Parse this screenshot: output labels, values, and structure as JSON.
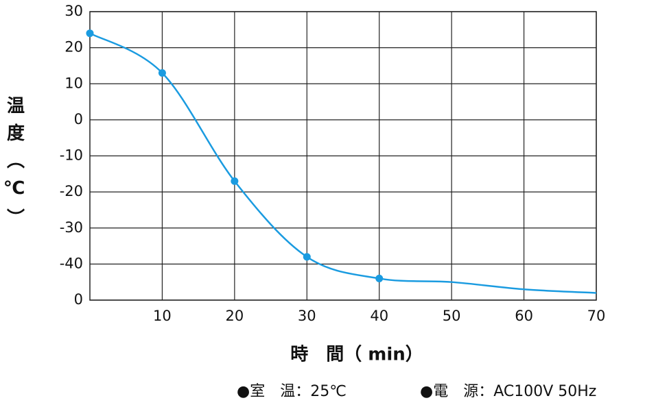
{
  "chart_data": {
    "type": "line",
    "x_label": "時　間（ min）",
    "y_label": "温度（℃）",
    "x": [
      0,
      10,
      20,
      30,
      40,
      50,
      60,
      70
    ],
    "series": [
      {
        "color": "#1a9be0",
        "values": [
          24,
          13,
          -17,
          -38,
          -44,
          -45,
          -47,
          -48
        ],
        "markers": [
          true,
          true,
          true,
          true,
          true,
          false,
          false,
          false
        ]
      }
    ],
    "xlim": [
      0,
      70
    ],
    "xticks": [
      10,
      20,
      30,
      40,
      50,
      60,
      70
    ],
    "ylim": [
      -50,
      30
    ],
    "yticks": [
      {
        "value": -50,
        "label": "0"
      },
      -40,
      -30,
      -20,
      -10,
      0,
      10,
      20,
      30
    ],
    "grid": true,
    "notes": [
      "●室　温：25℃",
      "●電　源：AC100V 50Hz"
    ]
  }
}
